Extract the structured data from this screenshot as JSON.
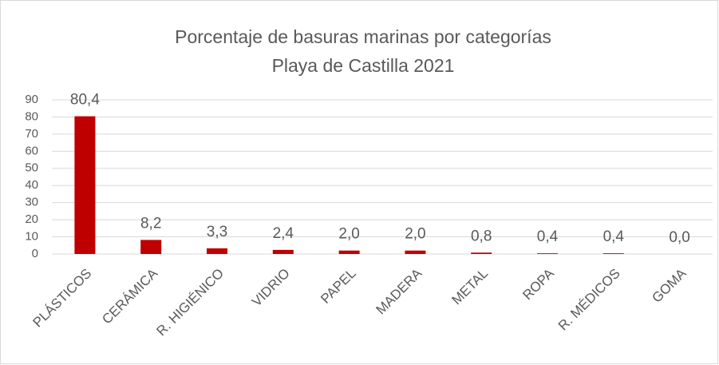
{
  "chart_data": {
    "type": "bar",
    "title": "Porcentaje de basuras marinas por categorías",
    "subtitle": "Playa de Castilla 2021",
    "categories": [
      "PLÁSTICOS",
      "CERÁMICA",
      "R. HIGIÉNICO",
      "VIDRIO",
      "PAPEL",
      "MADERA",
      "METAL",
      "ROPA",
      "R. MÉDICOS",
      "GOMA"
    ],
    "values": [
      80.4,
      8.2,
      3.3,
      2.4,
      2.0,
      2.0,
      0.8,
      0.4,
      0.4,
      0.0
    ],
    "value_labels": [
      "80,4",
      "8,2",
      "3,3",
      "2,4",
      "2,0",
      "2,0",
      "0,8",
      "0,4",
      "0,4",
      "0,0"
    ],
    "color": "#c00000",
    "ylim": [
      0,
      90
    ],
    "yticks": [
      0,
      10,
      20,
      30,
      40,
      50,
      60,
      70,
      80,
      90
    ],
    "grid": true
  }
}
